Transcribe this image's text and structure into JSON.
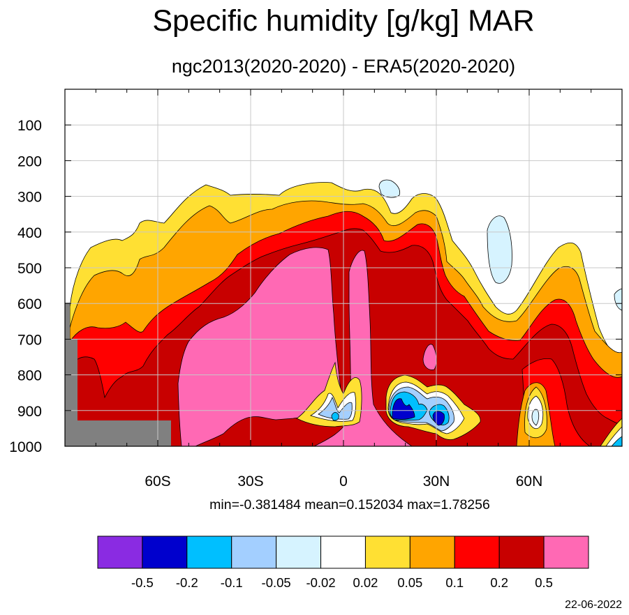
{
  "title": "Specific humidity [g/kg] MAR",
  "subtitle": "ngc2013(2020-2020) - ERA5(2020-2020)",
  "stats": "min=-0.381484   mean=0.152034   max=1.78256",
  "date": "22-06-2022",
  "chart_data": {
    "type": "heatmap",
    "title": "Specific humidity [g/kg] MAR",
    "subtitle": "ngc2013(2020-2020) - ERA5(2020-2020)",
    "xlabel": "",
    "ylabel": "",
    "x_ticks": [
      {
        "value": -60,
        "label": "60S"
      },
      {
        "value": -30,
        "label": "30S"
      },
      {
        "value": 0,
        "label": "0"
      },
      {
        "value": 30,
        "label": "30N"
      },
      {
        "value": 60,
        "label": "60N"
      }
    ],
    "y_ticks": [
      100,
      200,
      300,
      400,
      500,
      600,
      700,
      800,
      900,
      1000
    ],
    "xlim": [
      -90,
      90
    ],
    "ylim": [
      1000,
      0
    ],
    "grid": true,
    "contour_levels": [
      "-0.5",
      "-0.2",
      "-0.1",
      "-0.05",
      "-0.02",
      "0.02",
      "0.05",
      "0.1",
      "0.2",
      "0.5"
    ],
    "colorbar_colors": [
      "#8a2be2",
      "#0000cd",
      "#00bfff",
      "#a3cfff",
      "#d6f3ff",
      "#ffffff",
      "#ffe033",
      "#ffa500",
      "#ff0000",
      "#c80000",
      "#ff69b4"
    ],
    "missing_color": "#808080",
    "min": -0.381484,
    "mean": 0.152034,
    "max": 1.78256
  }
}
